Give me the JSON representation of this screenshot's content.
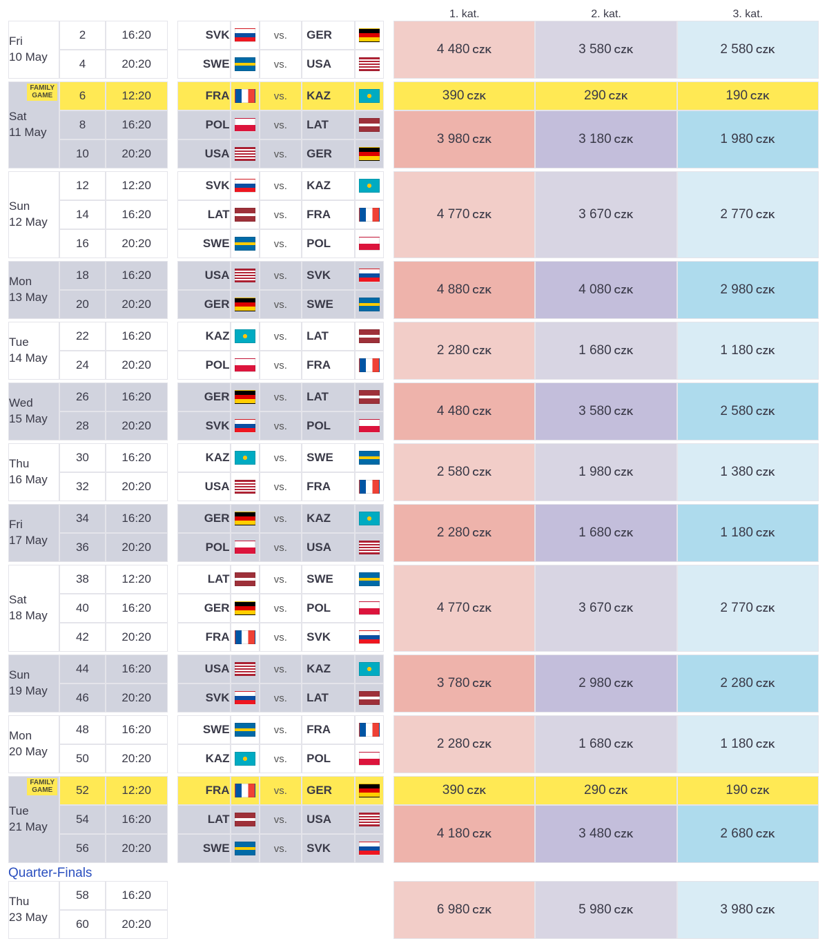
{
  "currency": "CZK",
  "price_headers": [
    "1. kat.",
    "2. kat.",
    "3. kat."
  ],
  "section_qf_title": "Quarter-Finals",
  "vs_label": "vs.",
  "family_game_label": "FAMILY\nGAME",
  "flags": {
    "SVK": "linear-gradient(to bottom,#fff 0 33%,#0b4ea2 33% 66%,#ee1620 66% 100%)",
    "GER": "linear-gradient(to bottom,#000 0 33%,#dd0000 33% 66%,#ffce00 66% 100%)",
    "SWE": "linear-gradient(to bottom,#006aa7 0 40%,#fecc00 40% 60%,#006aa7 60% 100%),linear-gradient(to right,#006aa7 0 30%,#fecc00 30% 45%,#006aa7 45% 100%)",
    "USA": "repeating-linear-gradient(to bottom,#b22234 0 2px,#fff 2px 4px)",
    "FRA": "linear-gradient(to right,#0055a4 0 33%,#fff 33% 66%,#ef4135 66% 100%)",
    "KAZ": "radial-gradient(circle at 50% 50%,#fec50c 0 18%,#00abc2 19% 100%)",
    "POL": "linear-gradient(to bottom,#fff 0 50%,#dc143c 50% 100%)",
    "LAT": "linear-gradient(to bottom,#9e3039 0 40%,#fff 40% 60%,#9e3039 60% 100%)"
  },
  "price_shade_red": [
    "price-red-light",
    "price-red-strong"
  ],
  "price_shade_pur": [
    "price-pur-light",
    "price-pur-strong"
  ],
  "price_shade_blu": [
    "price-blu-light",
    "price-blu-strong"
  ],
  "days": [
    {
      "day_label": "Fri\n10 May",
      "shade": "light",
      "games": [
        {
          "num": 2,
          "time": "16:20",
          "home": "SVK",
          "away": "GER"
        },
        {
          "num": 4,
          "time": "20:20",
          "home": "SWE",
          "away": "USA"
        }
      ],
      "price_blocks": [
        {
          "prices": [
            "4 480",
            "3 580",
            "2 580"
          ],
          "shade_idx": 0,
          "span": 2
        }
      ]
    },
    {
      "day_label": "Sat\n11 May",
      "shade": "gray",
      "family_row": 0,
      "games": [
        {
          "num": 6,
          "time": "12:20",
          "home": "FRA",
          "away": "KAZ",
          "family": true
        },
        {
          "num": 8,
          "time": "16:20",
          "home": "POL",
          "away": "LAT"
        },
        {
          "num": 10,
          "time": "20:20",
          "home": "USA",
          "away": "GER"
        }
      ],
      "price_blocks": [
        {
          "prices": [
            "390",
            "290",
            "190"
          ],
          "yellow": true,
          "span": 1
        },
        {
          "prices": [
            "3 980",
            "3 180",
            "1 980"
          ],
          "shade_idx": 1,
          "span": 2
        }
      ]
    },
    {
      "day_label": "Sun\n12 May",
      "shade": "light",
      "games": [
        {
          "num": 12,
          "time": "12:20",
          "home": "SVK",
          "away": "KAZ"
        },
        {
          "num": 14,
          "time": "16:20",
          "home": "LAT",
          "away": "FRA"
        },
        {
          "num": 16,
          "time": "20:20",
          "home": "SWE",
          "away": "POL"
        }
      ],
      "price_blocks": [
        {
          "prices": [
            "4 770",
            "3 670",
            "2 770"
          ],
          "shade_idx": 0,
          "span": 3
        }
      ]
    },
    {
      "day_label": "Mon\n13 May",
      "shade": "gray",
      "games": [
        {
          "num": 18,
          "time": "16:20",
          "home": "USA",
          "away": "SVK"
        },
        {
          "num": 20,
          "time": "20:20",
          "home": "GER",
          "away": "SWE"
        }
      ],
      "price_blocks": [
        {
          "prices": [
            "4 880",
            "4 080",
            "2 980"
          ],
          "shade_idx": 1,
          "span": 2
        }
      ]
    },
    {
      "day_label": "Tue\n14 May",
      "shade": "light",
      "games": [
        {
          "num": 22,
          "time": "16:20",
          "home": "KAZ",
          "away": "LAT"
        },
        {
          "num": 24,
          "time": "20:20",
          "home": "POL",
          "away": "FRA"
        }
      ],
      "price_blocks": [
        {
          "prices": [
            "2 280",
            "1 680",
            "1 180"
          ],
          "shade_idx": 0,
          "span": 2
        }
      ]
    },
    {
      "day_label": "Wed\n15 May",
      "shade": "gray",
      "games": [
        {
          "num": 26,
          "time": "16:20",
          "home": "GER",
          "away": "LAT"
        },
        {
          "num": 28,
          "time": "20:20",
          "home": "SVK",
          "away": "POL"
        }
      ],
      "price_blocks": [
        {
          "prices": [
            "4 480",
            "3 580",
            "2 580"
          ],
          "shade_idx": 1,
          "span": 2
        }
      ]
    },
    {
      "day_label": "Thu\n16 May",
      "shade": "light",
      "games": [
        {
          "num": 30,
          "time": "16:20",
          "home": "KAZ",
          "away": "SWE"
        },
        {
          "num": 32,
          "time": "20:20",
          "home": "USA",
          "away": "FRA"
        }
      ],
      "price_blocks": [
        {
          "prices": [
            "2 580",
            "1 980",
            "1 380"
          ],
          "shade_idx": 0,
          "span": 2
        }
      ]
    },
    {
      "day_label": "Fri\n17 May",
      "shade": "gray",
      "games": [
        {
          "num": 34,
          "time": "16:20",
          "home": "GER",
          "away": "KAZ"
        },
        {
          "num": 36,
          "time": "20:20",
          "home": "POL",
          "away": "USA"
        }
      ],
      "price_blocks": [
        {
          "prices": [
            "2 280",
            "1 680",
            "1 180"
          ],
          "shade_idx": 1,
          "span": 2
        }
      ]
    },
    {
      "day_label": "Sat\n18 May",
      "shade": "light",
      "games": [
        {
          "num": 38,
          "time": "12:20",
          "home": "LAT",
          "away": "SWE"
        },
        {
          "num": 40,
          "time": "16:20",
          "home": "GER",
          "away": "POL"
        },
        {
          "num": 42,
          "time": "20:20",
          "home": "FRA",
          "away": "SVK"
        }
      ],
      "price_blocks": [
        {
          "prices": [
            "4 770",
            "3 670",
            "2 770"
          ],
          "shade_idx": 0,
          "span": 3
        }
      ]
    },
    {
      "day_label": "Sun\n19 May",
      "shade": "gray",
      "games": [
        {
          "num": 44,
          "time": "16:20",
          "home": "USA",
          "away": "KAZ"
        },
        {
          "num": 46,
          "time": "20:20",
          "home": "SVK",
          "away": "LAT"
        }
      ],
      "price_blocks": [
        {
          "prices": [
            "3 780",
            "2 980",
            "2 280"
          ],
          "shade_idx": 1,
          "span": 2
        }
      ]
    },
    {
      "day_label": "Mon\n20 May",
      "shade": "light",
      "games": [
        {
          "num": 48,
          "time": "16:20",
          "home": "SWE",
          "away": "FRA"
        },
        {
          "num": 50,
          "time": "20:20",
          "home": "KAZ",
          "away": "POL"
        }
      ],
      "price_blocks": [
        {
          "prices": [
            "2 280",
            "1 680",
            "1 180"
          ],
          "shade_idx": 0,
          "span": 2
        }
      ]
    },
    {
      "day_label": "Tue\n21 May",
      "shade": "gray",
      "family_row": 0,
      "games": [
        {
          "num": 52,
          "time": "12:20",
          "home": "FRA",
          "away": "GER",
          "family": true
        },
        {
          "num": 54,
          "time": "16:20",
          "home": "LAT",
          "away": "USA"
        },
        {
          "num": 56,
          "time": "20:20",
          "home": "SWE",
          "away": "SVK"
        }
      ],
      "price_blocks": [
        {
          "prices": [
            "390",
            "290",
            "190"
          ],
          "yellow": true,
          "span": 1
        },
        {
          "prices": [
            "4 180",
            "3 480",
            "2 680"
          ],
          "shade_idx": 1,
          "span": 2
        }
      ]
    }
  ],
  "qf_day": {
    "day_label": "Thu\n23 May",
    "shade": "light",
    "games": [
      {
        "num": 58,
        "time": "16:20"
      },
      {
        "num": 60,
        "time": "20:20"
      }
    ],
    "price_blocks": [
      {
        "prices": [
          "6 980",
          "5 980",
          "3 980"
        ],
        "shade_idx": 0,
        "span": 2
      }
    ]
  }
}
